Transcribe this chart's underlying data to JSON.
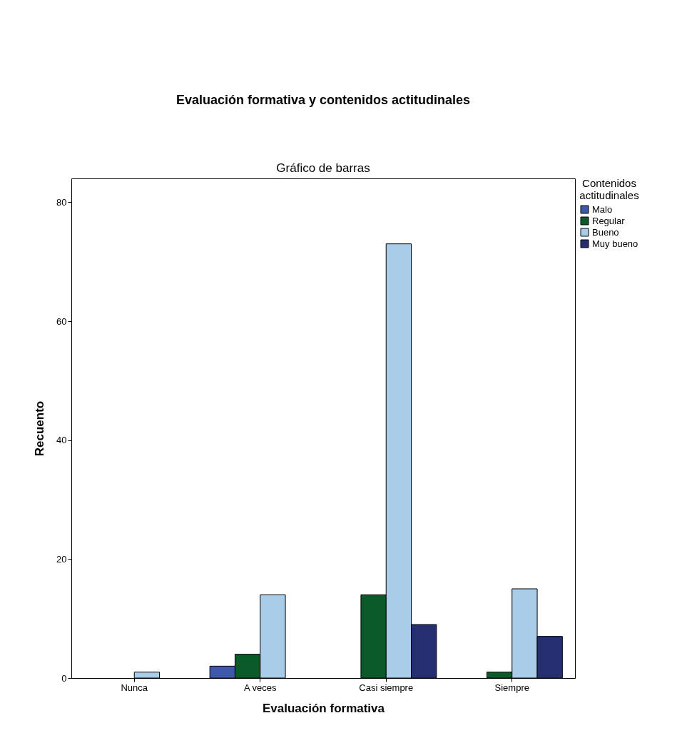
{
  "chart_data": {
    "type": "bar",
    "title": "Evaluación formativa y contenidos actitudinales",
    "subtitle": "Gráfico de barras",
    "xlabel": "Evaluación formativa",
    "ylabel": "Recuento",
    "legend_title": "Contenidos actitudinales",
    "categories": [
      "Nunca",
      "A veces",
      "Casi siempre",
      "Siempre"
    ],
    "series": [
      {
        "name": "Malo",
        "color": "#3e58ac",
        "values": [
          null,
          2,
          null,
          null
        ]
      },
      {
        "name": "Regular",
        "color": "#0b5a2a",
        "values": [
          null,
          4,
          14,
          1
        ]
      },
      {
        "name": "Bueno",
        "color": "#a9cde9",
        "values": [
          1,
          14,
          73,
          15
        ]
      },
      {
        "name": "Muy bueno",
        "color": "#262f72",
        "values": [
          null,
          null,
          9,
          7
        ]
      }
    ],
    "ylim": [
      0,
      84
    ],
    "yticks": [
      0,
      20,
      40,
      60,
      80
    ],
    "grid": false,
    "legend": "top right"
  }
}
